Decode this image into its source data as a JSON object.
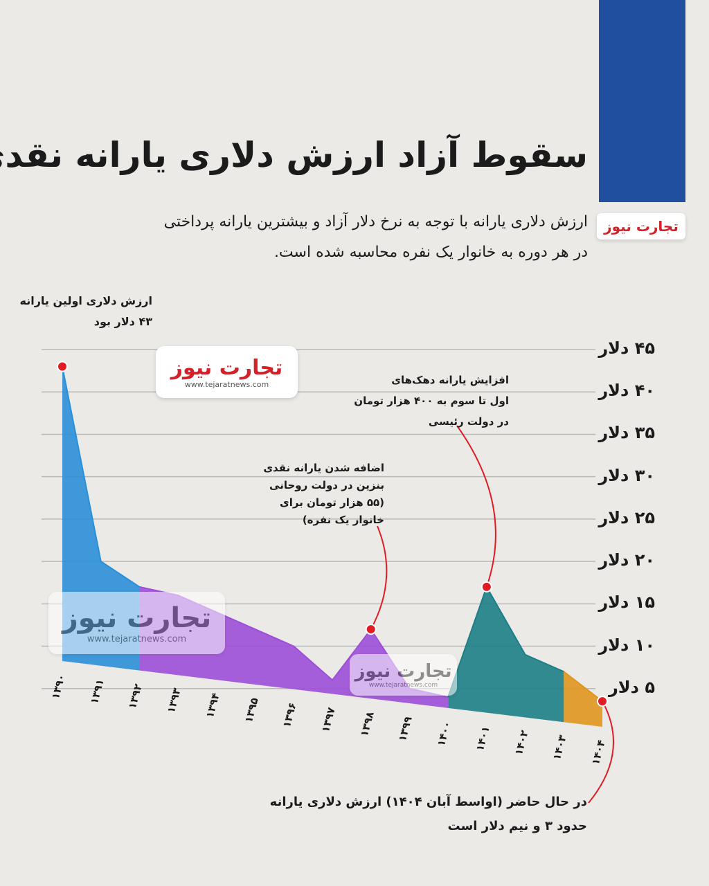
{
  "brand": "تجارت نیوز",
  "site": "www.tejaratnews.com",
  "chart_data": {
    "type": "area",
    "title": "سقوط آزاد ارزش دلاری یارانه نقدی",
    "subtitle": [
      "ارزش دلاری یارانه با توجه به نرخ دلار آزاد و بیشترین یارانه پرداختی",
      "در هر دوره به خانوار یک نفره محاسبه شده است."
    ],
    "categories": [
      "۱۳۹۰",
      "۱۳۹۱",
      "۱۳۹۲",
      "۱۳۹۳",
      "۱۳۹۴",
      "۱۳۹۵",
      "۱۳۹۶",
      "۱۳۹۷",
      "۱۳۹۸",
      "۱۳۹۹",
      "۱۴۰۰",
      "۱۴۰۱",
      "۱۴۰۲",
      "۱۴۰۳",
      "۱۴۰۴"
    ],
    "series": [
      {
        "color": "#2b8fd8",
        "values": [
          43,
          20,
          17,
          null,
          null,
          null,
          null,
          null,
          null,
          null,
          null,
          null,
          null,
          null,
          null
        ]
      },
      {
        "color": "#9d4fd8",
        "values": [
          null,
          null,
          17,
          16,
          14,
          12,
          10,
          6,
          12,
          5,
          4,
          null,
          null,
          null,
          null
        ]
      },
      {
        "color": "#1d7f86",
        "values": [
          null,
          null,
          null,
          null,
          null,
          null,
          null,
          null,
          null,
          null,
          4,
          17,
          9,
          7,
          null
        ]
      },
      {
        "color": "#e0961e",
        "values": [
          null,
          null,
          null,
          null,
          null,
          null,
          null,
          null,
          null,
          null,
          null,
          null,
          null,
          7,
          3.5
        ]
      }
    ],
    "ylim": [
      0,
      45
    ],
    "yticks": [
      {
        "value": 5,
        "label": "۵ دلار"
      },
      {
        "value": 10,
        "label": "۱۰ دلار"
      },
      {
        "value": 15,
        "label": "۱۵ دلار"
      },
      {
        "value": 20,
        "label": "۲۰ دلار"
      },
      {
        "value": 25,
        "label": "۲۵ دلار"
      },
      {
        "value": 30,
        "label": "۳۰ دلار"
      },
      {
        "value": 35,
        "label": "۳۵ دلار"
      },
      {
        "value": 40,
        "label": "۴۰ دلار"
      },
      {
        "value": 45,
        "label": "۴۵ دلار"
      }
    ],
    "grid": true,
    "annotations": [
      {
        "lines": [
          "ارزش دلاری اولین یارانه",
          "۴۳ دلار بود"
        ]
      },
      {
        "lines": [
          "اضافه شدن یارانه نقدی",
          "بنزین در دولت روحانی",
          "(۵۵ هزار تومان برای",
          "خانوار یک نفره)"
        ]
      },
      {
        "lines": [
          "افزایش یارانه دهک‌های",
          "اول تا سوم به ۴۰۰ هزار تومان",
          "در دولت رئیسی"
        ]
      },
      {
        "lines": [
          "در حال حاضر (اواسط آبان ۱۴۰۴) ارزش دلاری یارانه",
          "حدود ۳ و نیم دلار است"
        ]
      }
    ]
  }
}
